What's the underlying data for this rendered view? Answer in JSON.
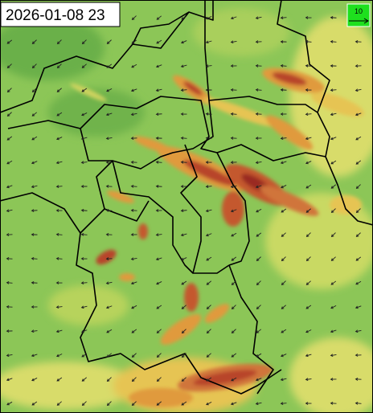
{
  "timestamp": "2026-01-08 23",
  "legend": {
    "label": "10"
  }
}
